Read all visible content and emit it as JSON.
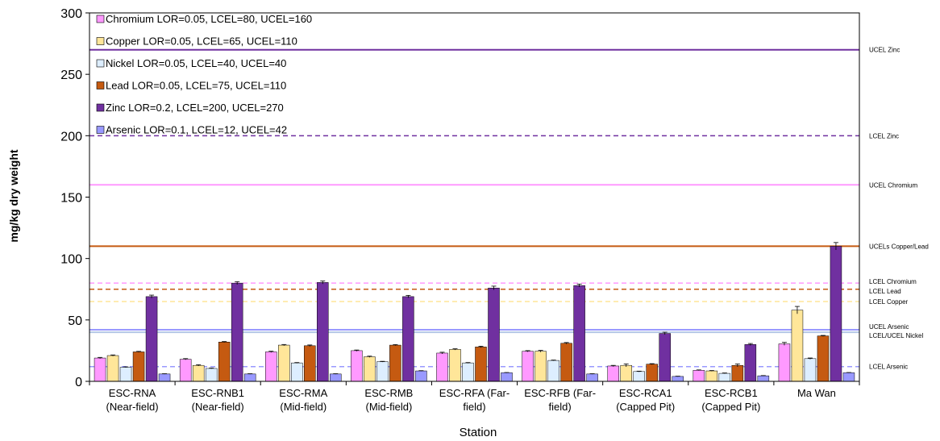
{
  "chart_data": {
    "type": "bar",
    "title": "",
    "xlabel": "Station",
    "ylabel": "mg/kg dry weight",
    "ylim": [
      0,
      300
    ],
    "yticks": [
      0,
      50,
      100,
      150,
      200,
      250,
      300
    ],
    "grid": false,
    "legend_position": "top-left",
    "categories": [
      [
        "ESC-RNA",
        "(Near-field)"
      ],
      [
        "ESC-RNB1",
        "(Near-field)"
      ],
      [
        "ESC-RMA",
        "(Mid-field)"
      ],
      [
        "ESC-RMB",
        "(Mid-field)"
      ],
      [
        "ESC-RFA (Far-",
        "field)"
      ],
      [
        "ESC-RFB (Far-",
        "field)"
      ],
      [
        "ESC-RCA1",
        "(Capped Pit)"
      ],
      [
        "ESC-RCB1",
        "(Capped Pit)"
      ],
      [
        "Ma Wan",
        ""
      ]
    ],
    "series": [
      {
        "name": "Chromium LOR=0.05, LCEL=80, UCEL=160",
        "color": "#ff99ff",
        "values": [
          19,
          18,
          24,
          25,
          23,
          24.5,
          12.5,
          9,
          30.5
        ],
        "errors": [
          0.5,
          0.5,
          0.5,
          0.5,
          0.7,
          0.5,
          0.5,
          0.3,
          1.2
        ]
      },
      {
        "name": "Copper LOR=0.05, LCEL=65, UCEL=110",
        "color": "#ffe699",
        "values": [
          21,
          13,
          29.5,
          20,
          26,
          24.5,
          13,
          8.5,
          58
        ],
        "errors": [
          0.5,
          0.5,
          0.5,
          0.5,
          0.5,
          0.7,
          1.2,
          0.3,
          3
        ]
      },
      {
        "name": "Nickel LOR=0.05, LCEL=40, UCEL=40",
        "color": "#ddeeff",
        "values": [
          11.5,
          10.5,
          15,
          16,
          15,
          17,
          8,
          6.5,
          18.5
        ],
        "errors": [
          0.3,
          0.3,
          0.3,
          0.3,
          0.3,
          0.3,
          0.3,
          0.3,
          0.5
        ]
      },
      {
        "name": "Lead LOR=0.05, LCEL=75, UCEL=110",
        "color": "#c55a11",
        "values": [
          24,
          32,
          29,
          29.5,
          28,
          31,
          14,
          13,
          37
        ],
        "errors": [
          0.4,
          0.4,
          0.6,
          0.4,
          0.6,
          0.6,
          0.4,
          1.2,
          0.4
        ]
      },
      {
        "name": "Zinc LOR=0.2, LCEL=200, UCEL=270",
        "color": "#7030a0",
        "values": [
          69,
          80,
          80.5,
          69,
          76,
          78,
          39,
          30,
          110
        ],
        "errors": [
          1.2,
          1.2,
          1.2,
          1,
          1.5,
          1.2,
          1,
          0.8,
          3
        ]
      },
      {
        "name": "Arsenic LOR=0.1, LCEL=12, UCEL=42",
        "color": "#9999ff",
        "values": [
          6,
          6,
          6,
          8.5,
          7,
          6,
          4,
          4.5,
          7
        ],
        "errors": [
          0.2,
          0.2,
          0.2,
          0.2,
          0.2,
          0.2,
          0.2,
          0.2,
          0.2
        ]
      }
    ],
    "reference_lines": [
      {
        "label": "UCEL Zinc",
        "value": 270,
        "color": "#7030a0",
        "dashed": false
      },
      {
        "label": "LCEL Zinc",
        "value": 200,
        "color": "#7030a0",
        "dashed": true
      },
      {
        "label": "UCEL Chromium",
        "value": 160,
        "color": "#ff99ff",
        "dashed": false
      },
      {
        "label": "UCELs Copper/Lead",
        "value": 110,
        "color": "#c55a11",
        "dashed": false
      },
      {
        "label": "LCEL Chromium",
        "value": 80,
        "color": "#ff99ff",
        "dashed": true
      },
      {
        "label": "LCEL Lead",
        "value": 75,
        "color": "#c55a11",
        "dashed": true
      },
      {
        "label": "LCEL Copper",
        "value": 65,
        "color": "#ffe699",
        "dashed": true
      },
      {
        "label": "UCEL Arsenic",
        "value": 42,
        "color": "#9999ff",
        "dashed": false
      },
      {
        "label": "LCEL/UCEL Nickel",
        "value": 40,
        "color": "#b4c7e7",
        "dashed": false
      },
      {
        "label": "LCEL Arsenic",
        "value": 12,
        "color": "#9999ff",
        "dashed": true
      }
    ]
  }
}
